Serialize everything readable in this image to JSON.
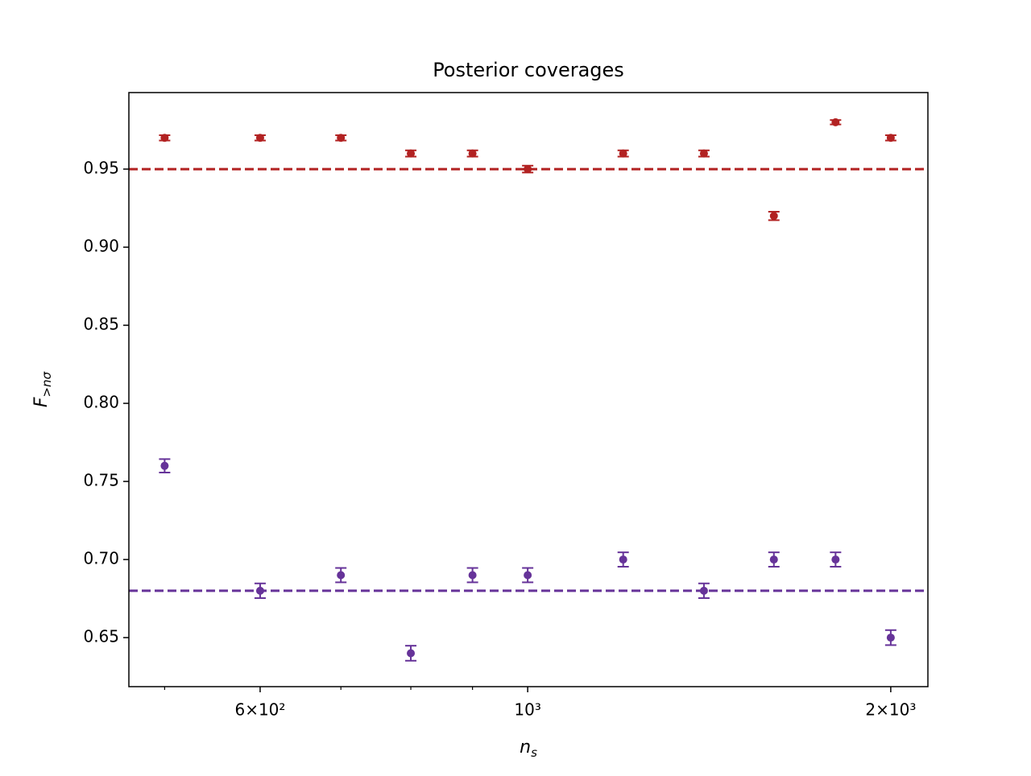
{
  "chart_data": {
    "type": "errorbar",
    "title": "Posterior coverages",
    "xlabel": {
      "main": "n",
      "sub": "s"
    },
    "ylabel": {
      "main": "F",
      "sub": ">nσ"
    },
    "xscale": "log",
    "x": [
      500,
      600,
      700,
      800,
      900,
      1000,
      1200,
      1400,
      1600,
      1800,
      2000
    ],
    "series": [
      {
        "color": "#b22222",
        "values": [
          0.97,
          0.97,
          0.97,
          0.96,
          0.96,
          0.95,
          0.96,
          0.96,
          0.92,
          0.98,
          0.97
        ],
        "errors": [
          0.0017,
          0.0017,
          0.0017,
          0.002,
          0.002,
          0.0022,
          0.002,
          0.002,
          0.0027,
          0.0014,
          0.0017
        ]
      },
      {
        "color": "#663399",
        "values": [
          0.76,
          0.68,
          0.69,
          0.64,
          0.69,
          0.69,
          0.7,
          0.68,
          0.7,
          0.7,
          0.65
        ],
        "errors": [
          0.0043,
          0.0047,
          0.0046,
          0.0048,
          0.0046,
          0.0046,
          0.0046,
          0.0047,
          0.0046,
          0.0046,
          0.0048
        ]
      }
    ],
    "hlines": [
      {
        "value": 0.95,
        "color": "#b22222"
      },
      {
        "value": 0.68,
        "color": "#663399"
      }
    ],
    "xlim": [
      467,
      2147
    ],
    "xticks": [
      {
        "value": 600,
        "label": "6×10²"
      },
      {
        "value": 1000,
        "label": "10³"
      },
      {
        "value": 2000,
        "label": "2×10³"
      }
    ],
    "xminorticks": [
      500,
      700,
      800,
      900
    ],
    "ylim": [
      0.6186,
      0.999
    ],
    "yticks": [
      0.65,
      {
        "value": 0.7,
        "label": "0.70"
      },
      0.75,
      {
        "value": 0.8,
        "label": "0.80"
      },
      0.85,
      {
        "value": 0.9,
        "label": "0.90"
      },
      0.95
    ]
  }
}
